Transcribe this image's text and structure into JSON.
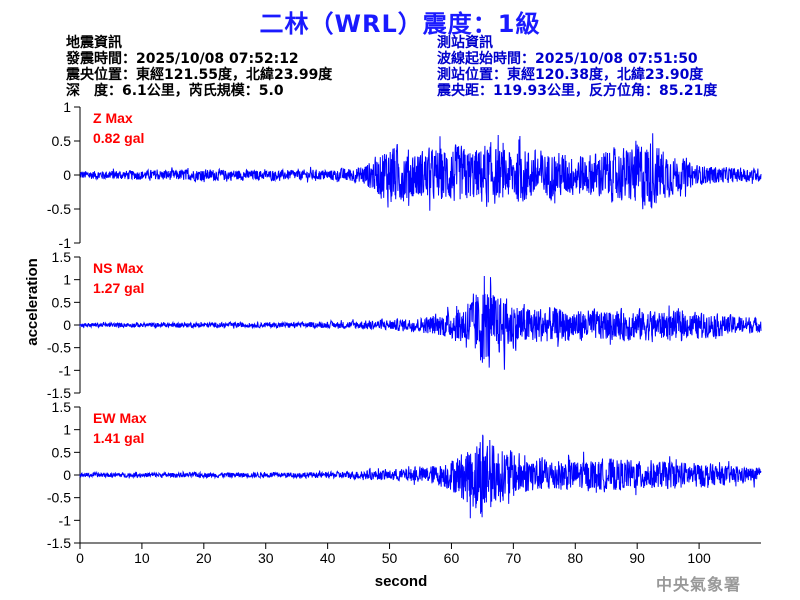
{
  "title": "二林（WRL）震度：1級",
  "earthquake_info": {
    "header": "地震資訊",
    "origin_time": "發震時間：2025/10/08 07:52:12",
    "epicenter": "震央位置：東經121.55度，北緯23.99度",
    "depth_magnitude": "深　度：6.1公里，芮氏規模：5.0"
  },
  "station_info": {
    "header": "測站資訊",
    "wave_start": "波線起始時間：2025/10/08 07:51:50",
    "station_location": "測站位置：東經120.38度，北緯23.90度",
    "distance_azimuth": "震央距：119.93公里，反方位角：85.21度"
  },
  "watermark": "中央氣象署",
  "colors": {
    "trace": "#0000ff",
    "max_label": "#ff0000",
    "title": "#1a1aff"
  },
  "chart_data": [
    {
      "type": "line",
      "name": "Z",
      "max_label": "Z Max",
      "max_value": "0.82 gal",
      "ylim": [
        -1,
        1
      ],
      "yticks": [
        1,
        0.5,
        0,
        -0.5,
        -1
      ],
      "ytick_labels": [
        "1",
        "0.5",
        "0",
        "-0.5",
        "-1"
      ],
      "envelope": {
        "t": [
          0,
          10,
          20,
          30,
          40,
          45,
          48,
          50,
          52,
          55,
          58,
          60,
          62,
          64,
          66,
          68,
          70,
          72,
          75,
          78,
          80,
          83,
          85,
          88,
          90,
          92,
          94,
          96,
          100,
          105,
          110
        ],
        "amp": [
          0.08,
          0.09,
          0.11,
          0.09,
          0.1,
          0.15,
          0.35,
          0.62,
          0.5,
          0.45,
          0.5,
          0.55,
          0.52,
          0.5,
          0.62,
          0.45,
          0.5,
          0.52,
          0.45,
          0.42,
          0.38,
          0.4,
          0.48,
          0.5,
          0.62,
          0.65,
          0.5,
          0.35,
          0.18,
          0.14,
          0.12
        ]
      }
    },
    {
      "type": "line",
      "name": "NS",
      "max_label": "NS Max",
      "max_value": "1.27 gal",
      "ylim": [
        -1.5,
        1.5
      ],
      "yticks": [
        1.5,
        1,
        0.5,
        0,
        -0.5,
        -1,
        -1.5
      ],
      "ytick_labels": [
        "1.5",
        "1",
        "0.5",
        "0",
        "-0.5",
        "-1",
        "-1.5"
      ],
      "envelope": {
        "t": [
          0,
          20,
          40,
          45,
          50,
          55,
          58,
          60,
          62,
          63,
          64,
          65,
          66,
          68,
          70,
          72,
          75,
          78,
          80,
          85,
          90,
          95,
          100,
          105,
          110
        ],
        "amp": [
          0.06,
          0.07,
          0.08,
          0.12,
          0.15,
          0.2,
          0.3,
          0.4,
          0.6,
          0.8,
          0.9,
          1.2,
          1.0,
          0.8,
          0.7,
          0.55,
          0.5,
          0.45,
          0.45,
          0.42,
          0.45,
          0.4,
          0.35,
          0.28,
          0.2
        ]
      }
    },
    {
      "type": "line",
      "name": "EW",
      "max_label": "EW Max",
      "max_value": "1.41 gal",
      "ylim": [
        -1.5,
        1.5
      ],
      "yticks": [
        1.5,
        1,
        0.5,
        0,
        -0.5,
        -1,
        -1.5
      ],
      "ytick_labels": [
        "1.5",
        "1",
        "0.5",
        "0",
        "-0.5",
        "-1",
        "-1.5"
      ],
      "envelope": {
        "t": [
          0,
          20,
          40,
          45,
          50,
          55,
          58,
          60,
          62,
          63,
          64,
          65,
          66,
          68,
          70,
          72,
          75,
          78,
          80,
          85,
          90,
          95,
          100,
          105,
          110
        ],
        "amp": [
          0.06,
          0.07,
          0.08,
          0.12,
          0.15,
          0.22,
          0.3,
          0.45,
          0.65,
          0.9,
          1.1,
          1.4,
          1.0,
          0.75,
          0.65,
          0.55,
          0.5,
          0.45,
          0.42,
          0.45,
          0.42,
          0.38,
          0.35,
          0.25,
          0.2
        ]
      }
    }
  ],
  "x_axis": {
    "label": "second",
    "ticks": [
      0,
      10,
      20,
      30,
      40,
      50,
      60,
      70,
      80,
      90,
      100
    ],
    "xlim": [
      0,
      110
    ]
  },
  "y_axis": {
    "label": "acceleration"
  }
}
